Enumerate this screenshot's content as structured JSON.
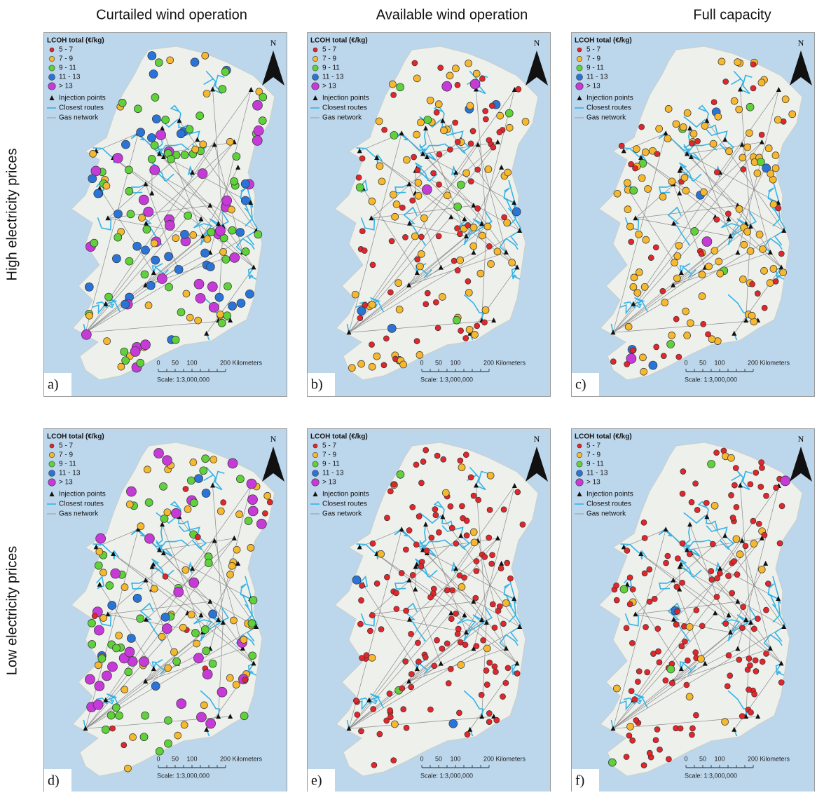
{
  "columns": [
    "Curtailed wind operation",
    "Available wind operation",
    "Full capacity"
  ],
  "rows": [
    "High electricity prices",
    "Low electricity prices"
  ],
  "legend": {
    "title": "LCOH total (€/kg)",
    "classes": [
      {
        "label": "5 - 7",
        "color": "#e3262b"
      },
      {
        "label": "7 - 9",
        "color": "#f5b82e"
      },
      {
        "label": "9 - 11",
        "color": "#5fd13b"
      },
      {
        "label": "11 - 13",
        "color": "#2a74d8"
      },
      {
        "label": "> 13",
        "color": "#c63ad8"
      }
    ],
    "items": [
      "Injection points",
      "Closest routes",
      "Gas network"
    ]
  },
  "north": "N",
  "scale": {
    "ticks": [
      "0",
      "50",
      "100",
      "200 Kilometers"
    ],
    "text": "Scale: 1:3,000,000"
  },
  "panels": [
    {
      "label": "a)"
    },
    {
      "label": "b)"
    },
    {
      "label": "c)"
    },
    {
      "label": "d)"
    },
    {
      "label": "e)"
    },
    {
      "label": "f)"
    }
  ]
}
